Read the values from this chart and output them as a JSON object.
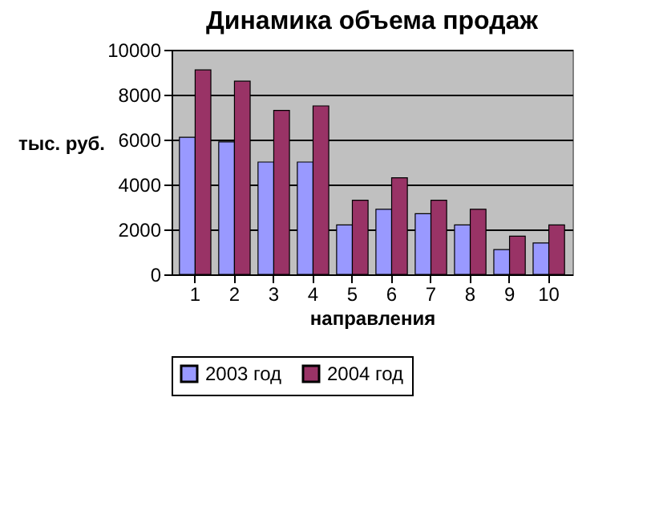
{
  "chart_data": {
    "type": "bar",
    "title": "Динамика объема продаж",
    "xlabel": "направления",
    "ylabel": "тыс. руб.",
    "categories": [
      "1",
      "2",
      "3",
      "4",
      "5",
      "6",
      "7",
      "8",
      "9",
      "10"
    ],
    "series": [
      {
        "name": "2003 год",
        "color": "#9999ff",
        "values": [
          6100,
          5900,
          5000,
          5000,
          2200,
          2900,
          2700,
          2200,
          1100,
          1400
        ]
      },
      {
        "name": "2004 год",
        "color": "#993366",
        "values": [
          9100,
          8600,
          7300,
          7500,
          3300,
          4300,
          3300,
          2900,
          1700,
          2200
        ]
      }
    ],
    "ylim": [
      0,
      10000
    ],
    "yticks": [
      0,
      2000,
      4000,
      6000,
      8000,
      10000
    ],
    "grid": "y",
    "legend": "bottom"
  }
}
